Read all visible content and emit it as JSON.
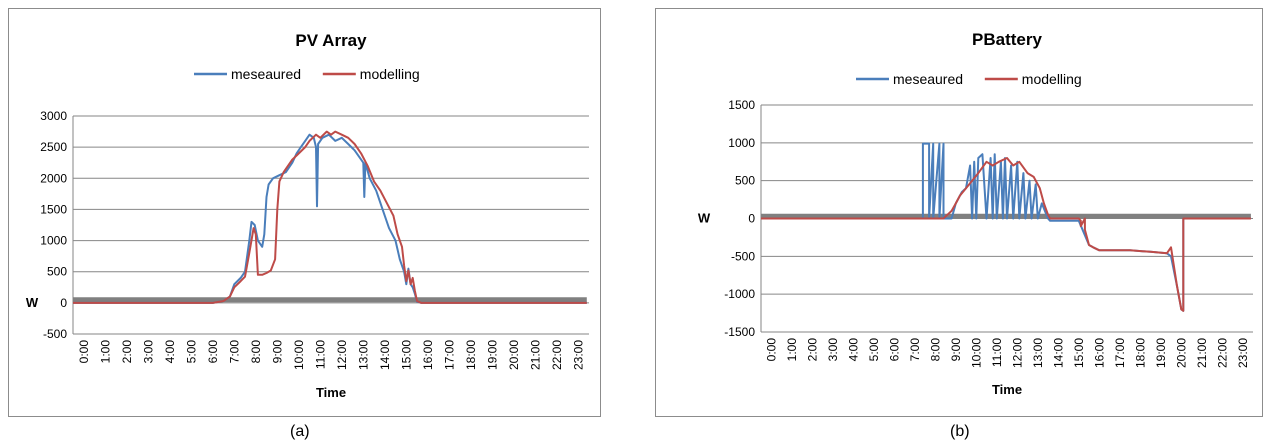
{
  "figure_labels": [
    "(a)",
    "(b)"
  ],
  "colors": {
    "measured": "#4a7ebb",
    "modelling": "#be4b48",
    "flat": "#808080",
    "grid": "#868686"
  },
  "chart_data": [
    {
      "type": "line",
      "title": "PV Array",
      "xlabel": "Time",
      "ylabel": "W",
      "ylim": [
        -500,
        3000
      ],
      "yticks": [
        -500,
        0,
        500,
        1000,
        1500,
        2000,
        2500,
        3000
      ],
      "xticks": [
        "0:00",
        "1:00",
        "2:00",
        "3:00",
        "4:00",
        "5:00",
        "6:00",
        "7:00",
        "8:00",
        "9:00",
        "10:00",
        "11:00",
        "12:00",
        "13:00",
        "14:00",
        "15:00",
        "16:00",
        "17:00",
        "18:00",
        "19:00",
        "20:00",
        "21:00",
        "22:00",
        "23:00"
      ],
      "legend": "top",
      "grid": true,
      "series": [
        {
          "name": "meseaured",
          "color": "#4a7ebb",
          "x": [
            0,
            6.5,
            7.0,
            7.3,
            7.5,
            7.8,
            8.0,
            8.2,
            8.3,
            8.45,
            8.6,
            8.8,
            8.9,
            9.0,
            9.1,
            9.3,
            9.6,
            9.9,
            10.2,
            10.4,
            10.6,
            10.8,
            11.0,
            11.2,
            11.3,
            11.35,
            11.4,
            11.6,
            11.9,
            12.2,
            12.5,
            12.8,
            13.1,
            13.4,
            13.5,
            13.55,
            13.6,
            13.8,
            14.1,
            14.4,
            14.7,
            15.0,
            15.2,
            15.4,
            15.5,
            15.6,
            15.7,
            15.8,
            15.9,
            16.0,
            16.2,
            16.5,
            17.0,
            23.9
          ],
          "y": [
            0,
            0,
            30,
            100,
            300,
            400,
            500,
            1000,
            1300,
            1250,
            1000,
            900,
            1100,
            1700,
            1900,
            2000,
            2050,
            2100,
            2250,
            2400,
            2500,
            2600,
            2700,
            2650,
            2500,
            1550,
            2550,
            2650,
            2700,
            2600,
            2650,
            2550,
            2450,
            2300,
            2250,
            1700,
            2250,
            2000,
            1800,
            1500,
            1200,
            1000,
            700,
            500,
            300,
            550,
            300,
            250,
            150,
            20,
            0,
            0,
            0,
            0
          ]
        },
        {
          "name": "modelling",
          "color": "#be4b48",
          "x": [
            0,
            6.5,
            7.0,
            7.3,
            7.5,
            7.8,
            8.0,
            8.2,
            8.4,
            8.5,
            8.6,
            8.8,
            9.0,
            9.2,
            9.4,
            9.5,
            9.6,
            9.8,
            10.0,
            10.2,
            10.5,
            10.8,
            11.0,
            11.3,
            11.5,
            11.8,
            12.0,
            12.2,
            12.5,
            12.8,
            13.1,
            13.4,
            13.7,
            14.0,
            14.3,
            14.6,
            14.9,
            15.1,
            15.3,
            15.4,
            15.5,
            15.6,
            15.7,
            15.8,
            15.9,
            16.0,
            16.2,
            16.5,
            17.0,
            23.9
          ],
          "y": [
            0,
            0,
            30,
            100,
            250,
            350,
            420,
            800,
            1200,
            1100,
            450,
            450,
            480,
            520,
            700,
            1500,
            1950,
            2100,
            2200,
            2300,
            2400,
            2500,
            2600,
            2700,
            2650,
            2750,
            2700,
            2750,
            2700,
            2650,
            2550,
            2400,
            2200,
            1950,
            1800,
            1600,
            1400,
            1100,
            900,
            600,
            350,
            520,
            300,
            400,
            200,
            30,
            0,
            0,
            0,
            0
          ]
        },
        {
          "name": "",
          "color": "#808080",
          "x": [
            0,
            23.9
          ],
          "y": [
            50,
            50
          ]
        }
      ]
    },
    {
      "type": "line",
      "title": "PBattery",
      "xlabel": "Time",
      "ylabel": "W",
      "ylim": [
        -1500,
        1500
      ],
      "yticks": [
        -1500,
        -1000,
        -500,
        0,
        500,
        1000,
        1500
      ],
      "xticks": [
        "0:00",
        "1:00",
        "2:00",
        "3:00",
        "4:00",
        "5:00",
        "6:00",
        "7:00",
        "8:00",
        "9:00",
        "10:00",
        "11:00",
        "12:00",
        "13:00",
        "14:00",
        "15:00",
        "16:00",
        "17:00",
        "18:00",
        "19:00",
        "20:00",
        "21:00",
        "22:00",
        "23:00"
      ],
      "legend": "top",
      "grid": true,
      "series": [
        {
          "name": "meseaured",
          "color": "#4a7ebb",
          "x": [
            0,
            7.9,
            7.9,
            8.2,
            8.2,
            8.4,
            8.4,
            8.7,
            8.7,
            8.9,
            8.9,
            9.3,
            9.5,
            9.8,
            10.0,
            10.2,
            10.3,
            10.4,
            10.5,
            10.6,
            10.8,
            11.0,
            11.2,
            11.3,
            11.4,
            11.5,
            11.7,
            11.8,
            11.9,
            12.0,
            12.2,
            12.3,
            12.5,
            12.6,
            12.8,
            12.9,
            13.1,
            13.2,
            13.4,
            13.5,
            13.7,
            14.0,
            14.1,
            15.5,
            16.0,
            16.2,
            16.5,
            17.0,
            18.0,
            19.0,
            19.8,
            20.0,
            20.3,
            20.5,
            20.6,
            20.6,
            23.9
          ],
          "y": [
            0,
            0,
            990,
            990,
            0,
            990,
            0,
            990,
            0,
            990,
            0,
            0,
            200,
            350,
            400,
            700,
            0,
            750,
            0,
            800,
            850,
            0,
            800,
            0,
            850,
            0,
            750,
            0,
            800,
            0,
            700,
            0,
            750,
            0,
            600,
            0,
            500,
            0,
            450,
            0,
            200,
            0,
            -30,
            -30,
            -350,
            -380,
            -420,
            -420,
            -420,
            -440,
            -460,
            -500,
            -900,
            -1200,
            -1220,
            0,
            0
          ]
        },
        {
          "name": "modelling",
          "color": "#be4b48",
          "x": [
            0,
            8.9,
            9.1,
            9.3,
            9.5,
            9.7,
            10.0,
            10.3,
            10.6,
            11.0,
            11.3,
            11.6,
            12.0,
            12.3,
            12.6,
            13.0,
            13.3,
            13.6,
            13.8,
            14.0,
            14.1,
            15.5,
            15.6,
            15.6,
            15.8,
            15.8,
            16.0,
            16.2,
            16.5,
            17.0,
            18.0,
            19.0,
            19.8,
            20.0,
            20.3,
            20.5,
            20.6,
            20.6,
            23.9
          ],
          "y": [
            0,
            0,
            50,
            100,
            200,
            300,
            400,
            500,
            600,
            750,
            700,
            750,
            800,
            700,
            750,
            600,
            550,
            400,
            200,
            50,
            0,
            0,
            -30,
            -100,
            0,
            -150,
            -350,
            -380,
            -420,
            -420,
            -420,
            -440,
            -460,
            -380,
            -900,
            -1200,
            -1220,
            0,
            0
          ]
        },
        {
          "name": "",
          "color": "#808080",
          "x": [
            0,
            23.9
          ],
          "y": [
            30,
            30
          ]
        }
      ]
    }
  ]
}
